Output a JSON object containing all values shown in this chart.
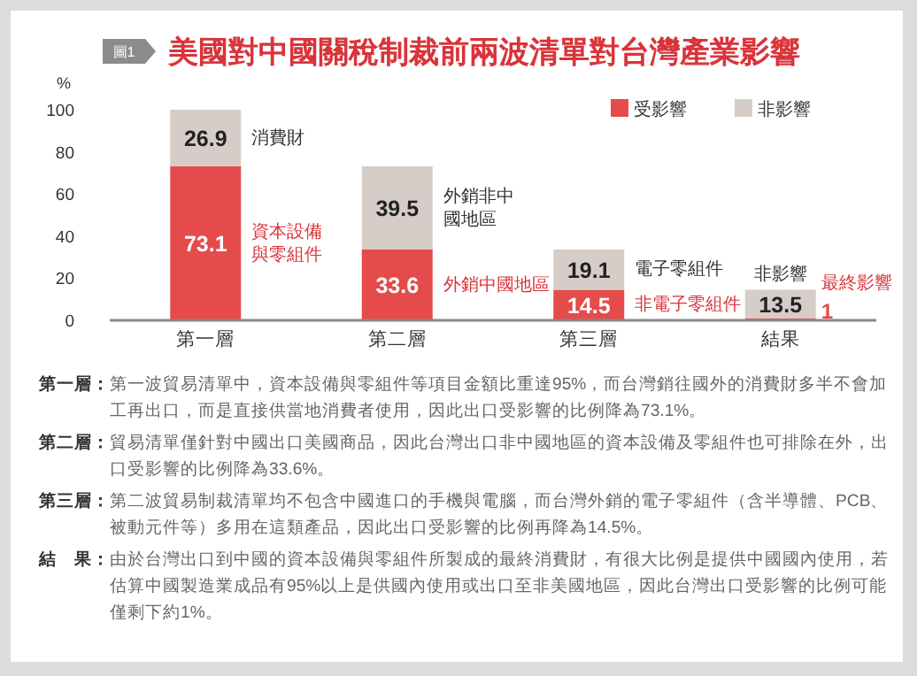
{
  "chart_data": {
    "type": "bar",
    "title": "美國對中國關稅制裁前兩波清單對台灣產業影響",
    "subtitle": "圖1",
    "ylabel": "%",
    "categories": [
      "第一層",
      "第二層",
      "第三層",
      "結果"
    ],
    "stacked": true,
    "series": [
      {
        "name": "受影響",
        "color": "#e54b4b",
        "values": [
          73.1,
          33.6,
          14.5,
          1
        ]
      },
      {
        "name": "非影響",
        "color": "#d6cdc9",
        "values": [
          26.9,
          39.5,
          19.1,
          13.5
        ]
      }
    ],
    "ylim": [
      0,
      100
    ],
    "yticks": [
      0,
      20,
      40,
      60,
      80,
      100
    ],
    "data_labels": true,
    "legend": "top right",
    "grid": false,
    "annotations": [
      "消費財",
      "資本設備與零組件",
      "外銷非中國地區",
      "外銷中國地區",
      "電子零組件",
      "非電子零組件",
      "非影響",
      "最終影響",
      "第一層：第一波貿易清單中，資本設備與零組件等項目金額比重達95%，而台灣銷往國外的消費財多半不會加工再出口，而是直接供當地消費者使用，因此出口受影響的比例降為73.1%。",
      "第二層：貿易清單僅針對中國出口美國商品，因此台灣出口非中國地區的資本設備及零組件也可排除在外，出口受影響的比例降為33.6%。",
      "第三層：第二波貿易制裁清單均不包含中國進口的手機與電腦，而台灣外銷的電子零組件（含半導體、PCB、被動元件等）多用在這類產品，因此出口受影響的比例再降為14.5%。",
      "結　果：由於台灣出口到中國的資本設備與零組件所製成的最終消費財，有很大比例是提供中國國內使用，若估算中國製造業成品有95%以上是供國內使用或出口至非美國地區，因此台灣出口受影響的比例可能僅剩下約1%。"
    ]
  }
}
